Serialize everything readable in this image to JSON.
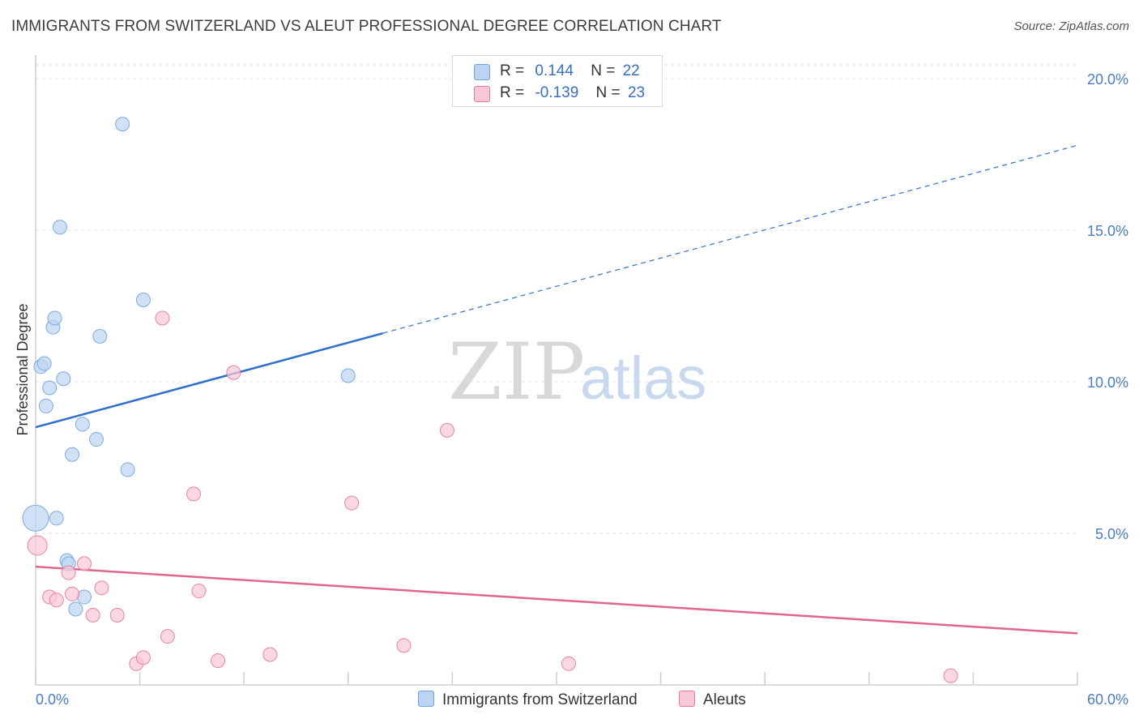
{
  "title": "IMMIGRANTS FROM SWITZERLAND VS ALEUT PROFESSIONAL DEGREE CORRELATION CHART",
  "source": "Source: ZipAtlas.com",
  "legend": {
    "row1": {
      "r_label": "R =",
      "r_value": "0.144",
      "n_label": "N =",
      "n_value": "22"
    },
    "row2": {
      "r_label": "R =",
      "r_value": "-0.139",
      "n_label": "N =",
      "n_value": "23"
    }
  },
  "bottom_legend": {
    "series1": "Immigrants from Switzerland",
    "series2": "Aleuts"
  },
  "colors": {
    "blue": "#6fa3e0",
    "blue_fill": "#bcd4f2",
    "pink": "#e8779c",
    "pink_fill": "#f8c8d6",
    "blue_line": "#2f6fcb",
    "pink_line": "#e0668f"
  },
  "chart_data": {
    "type": "scatter",
    "ylabel": "Professional Degree",
    "xlim": [
      0,
      60
    ],
    "ylim": [
      0,
      20
    ],
    "x_tick_labels": [
      "0.0%",
      "60.0%"
    ],
    "y_ticks": [
      5,
      10,
      15,
      20
    ],
    "y_tick_labels": [
      "5.0%",
      "10.0%",
      "15.0%",
      "20.0%"
    ],
    "series": [
      {
        "name": "Immigrants from Switzerland",
        "color": "#6fa3e0",
        "points": [
          {
            "x": 0.0,
            "y": 5.5,
            "r": 16
          },
          {
            "x": 0.3,
            "y": 10.5
          },
          {
            "x": 0.5,
            "y": 10.6
          },
          {
            "x": 0.6,
            "y": 9.2
          },
          {
            "x": 0.8,
            "y": 9.8
          },
          {
            "x": 1.0,
            "y": 11.8
          },
          {
            "x": 1.1,
            "y": 12.1
          },
          {
            "x": 1.2,
            "y": 5.5
          },
          {
            "x": 1.4,
            "y": 15.1
          },
          {
            "x": 1.6,
            "y": 10.1
          },
          {
            "x": 1.8,
            "y": 4.1
          },
          {
            "x": 1.9,
            "y": 4.0
          },
          {
            "x": 2.1,
            "y": 7.6
          },
          {
            "x": 2.3,
            "y": 2.5
          },
          {
            "x": 2.7,
            "y": 8.6
          },
          {
            "x": 2.8,
            "y": 2.9
          },
          {
            "x": 3.5,
            "y": 8.1
          },
          {
            "x": 3.7,
            "y": 11.5
          },
          {
            "x": 5.0,
            "y": 18.5
          },
          {
            "x": 5.3,
            "y": 7.1
          },
          {
            "x": 6.2,
            "y": 12.7
          },
          {
            "x": 18.0,
            "y": 10.2
          }
        ],
        "trend": {
          "x": [
            0,
            20
          ],
          "y": [
            8.5,
            11.6
          ]
        },
        "trend_extension": {
          "x": [
            20,
            60
          ],
          "y": [
            11.6,
            17.8
          ]
        }
      },
      {
        "name": "Aleuts",
        "color": "#e8779c",
        "points": [
          {
            "x": 0.1,
            "y": 4.6,
            "r": 12
          },
          {
            "x": 0.8,
            "y": 2.9
          },
          {
            "x": 1.2,
            "y": 2.8
          },
          {
            "x": 1.9,
            "y": 3.7
          },
          {
            "x": 2.1,
            "y": 3.0
          },
          {
            "x": 2.8,
            "y": 4.0
          },
          {
            "x": 3.3,
            "y": 2.3
          },
          {
            "x": 3.8,
            "y": 3.2
          },
          {
            "x": 4.7,
            "y": 2.3
          },
          {
            "x": 5.8,
            "y": 0.7
          },
          {
            "x": 6.2,
            "y": 0.9
          },
          {
            "x": 7.3,
            "y": 12.1
          },
          {
            "x": 7.6,
            "y": 1.6
          },
          {
            "x": 9.1,
            "y": 6.3
          },
          {
            "x": 9.4,
            "y": 3.1
          },
          {
            "x": 10.5,
            "y": 0.8
          },
          {
            "x": 11.4,
            "y": 10.3
          },
          {
            "x": 13.5,
            "y": 1.0
          },
          {
            "x": 18.2,
            "y": 6.0
          },
          {
            "x": 21.2,
            "y": 1.3
          },
          {
            "x": 23.7,
            "y": 8.4
          },
          {
            "x": 30.7,
            "y": 0.7
          },
          {
            "x": 52.7,
            "y": 0.3
          }
        ],
        "trend": {
          "x": [
            0,
            60
          ],
          "y": [
            3.9,
            1.7
          ]
        }
      }
    ]
  }
}
